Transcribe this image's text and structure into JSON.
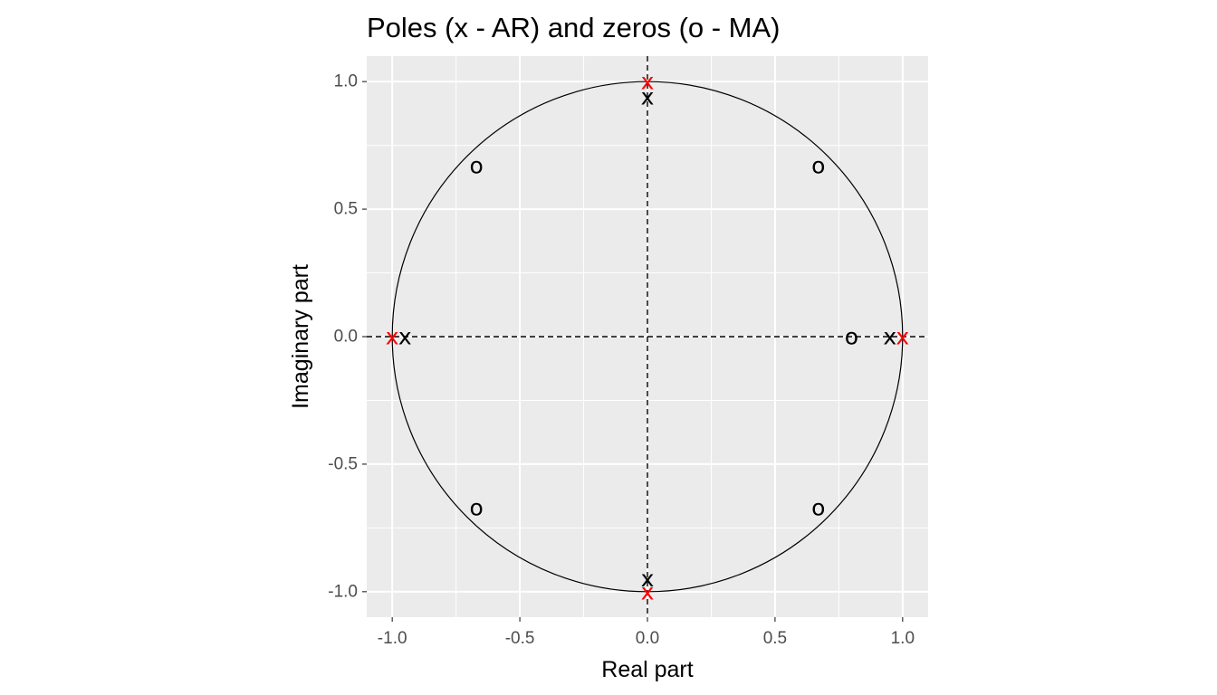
{
  "chart_data": {
    "type": "scatter",
    "title": "Poles (x - AR) and zeros (o - MA)",
    "xlabel": "Real part",
    "ylabel": "Imaginary part",
    "xlim": [
      -1.1,
      1.1
    ],
    "ylim": [
      -1.1,
      1.1
    ],
    "x_ticks": [
      -1.0,
      -0.5,
      0.0,
      0.5,
      1.0
    ],
    "y_ticks": [
      -1.0,
      -0.5,
      0.0,
      0.5,
      1.0
    ],
    "x_tick_labels": [
      "-1.0",
      "-0.5",
      "0.0",
      "0.5",
      "1.0"
    ],
    "y_tick_labels": [
      "-1.0",
      "-0.5",
      "0.0",
      "0.5",
      "1.0"
    ],
    "grid": true,
    "unit_circle": true,
    "reference_lines": [
      "x = 0",
      "y = 0"
    ],
    "series": [
      {
        "marker": "o",
        "color": "#000000",
        "points": [
          {
            "x": -0.67,
            "y": 0.67
          },
          {
            "x": 0.67,
            "y": 0.67
          },
          {
            "x": 0.8,
            "y": 0.0
          },
          {
            "x": -0.67,
            "y": -0.67
          },
          {
            "x": 0.67,
            "y": -0.67
          }
        ]
      },
      {
        "marker": "x",
        "color": "#000000",
        "points": [
          {
            "x": 0.0,
            "y": 0.94
          },
          {
            "x": -0.95,
            "y": 0.0
          },
          {
            "x": 0.95,
            "y": 0.0
          },
          {
            "x": 0.0,
            "y": -0.95
          }
        ]
      },
      {
        "marker": "x",
        "color": "#ff0000",
        "points": [
          {
            "x": 0.0,
            "y": 1.0
          },
          {
            "x": -1.0,
            "y": 0.0
          },
          {
            "x": 1.0,
            "y": 0.0
          },
          {
            "x": 0.0,
            "y": -1.0
          }
        ]
      }
    ]
  }
}
